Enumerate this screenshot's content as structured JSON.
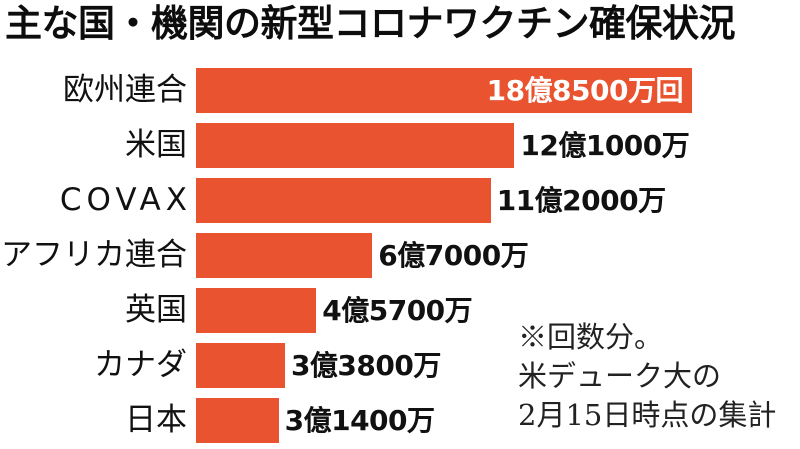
{
  "colors": {
    "bar": "#E9532F",
    "label_inside": "#FFFFFF",
    "label_outside": "#111111",
    "background": "#FFFFFF"
  },
  "chart_data": {
    "type": "bar",
    "orientation": "horizontal",
    "title": "主な国・機関の新型コロナワクチン確保状況",
    "categories": [
      "欧州連合",
      "米国",
      "COVAX",
      "アフリカ連合",
      "英国",
      "カナダ",
      "日本"
    ],
    "values": [
      1885000000,
      1210000000,
      1120000000,
      670000000,
      457000000,
      338000000,
      314000000
    ],
    "value_labels": [
      "18億8500万回",
      "12億1000万",
      "11億2000万",
      "6億7000万",
      "4億5700万",
      "3億3800万",
      "3億1400万"
    ],
    "grid": false,
    "legend": "none",
    "annotations": [
      "※回数分。",
      "米デューク大の",
      "2月15日時点の集計"
    ]
  }
}
